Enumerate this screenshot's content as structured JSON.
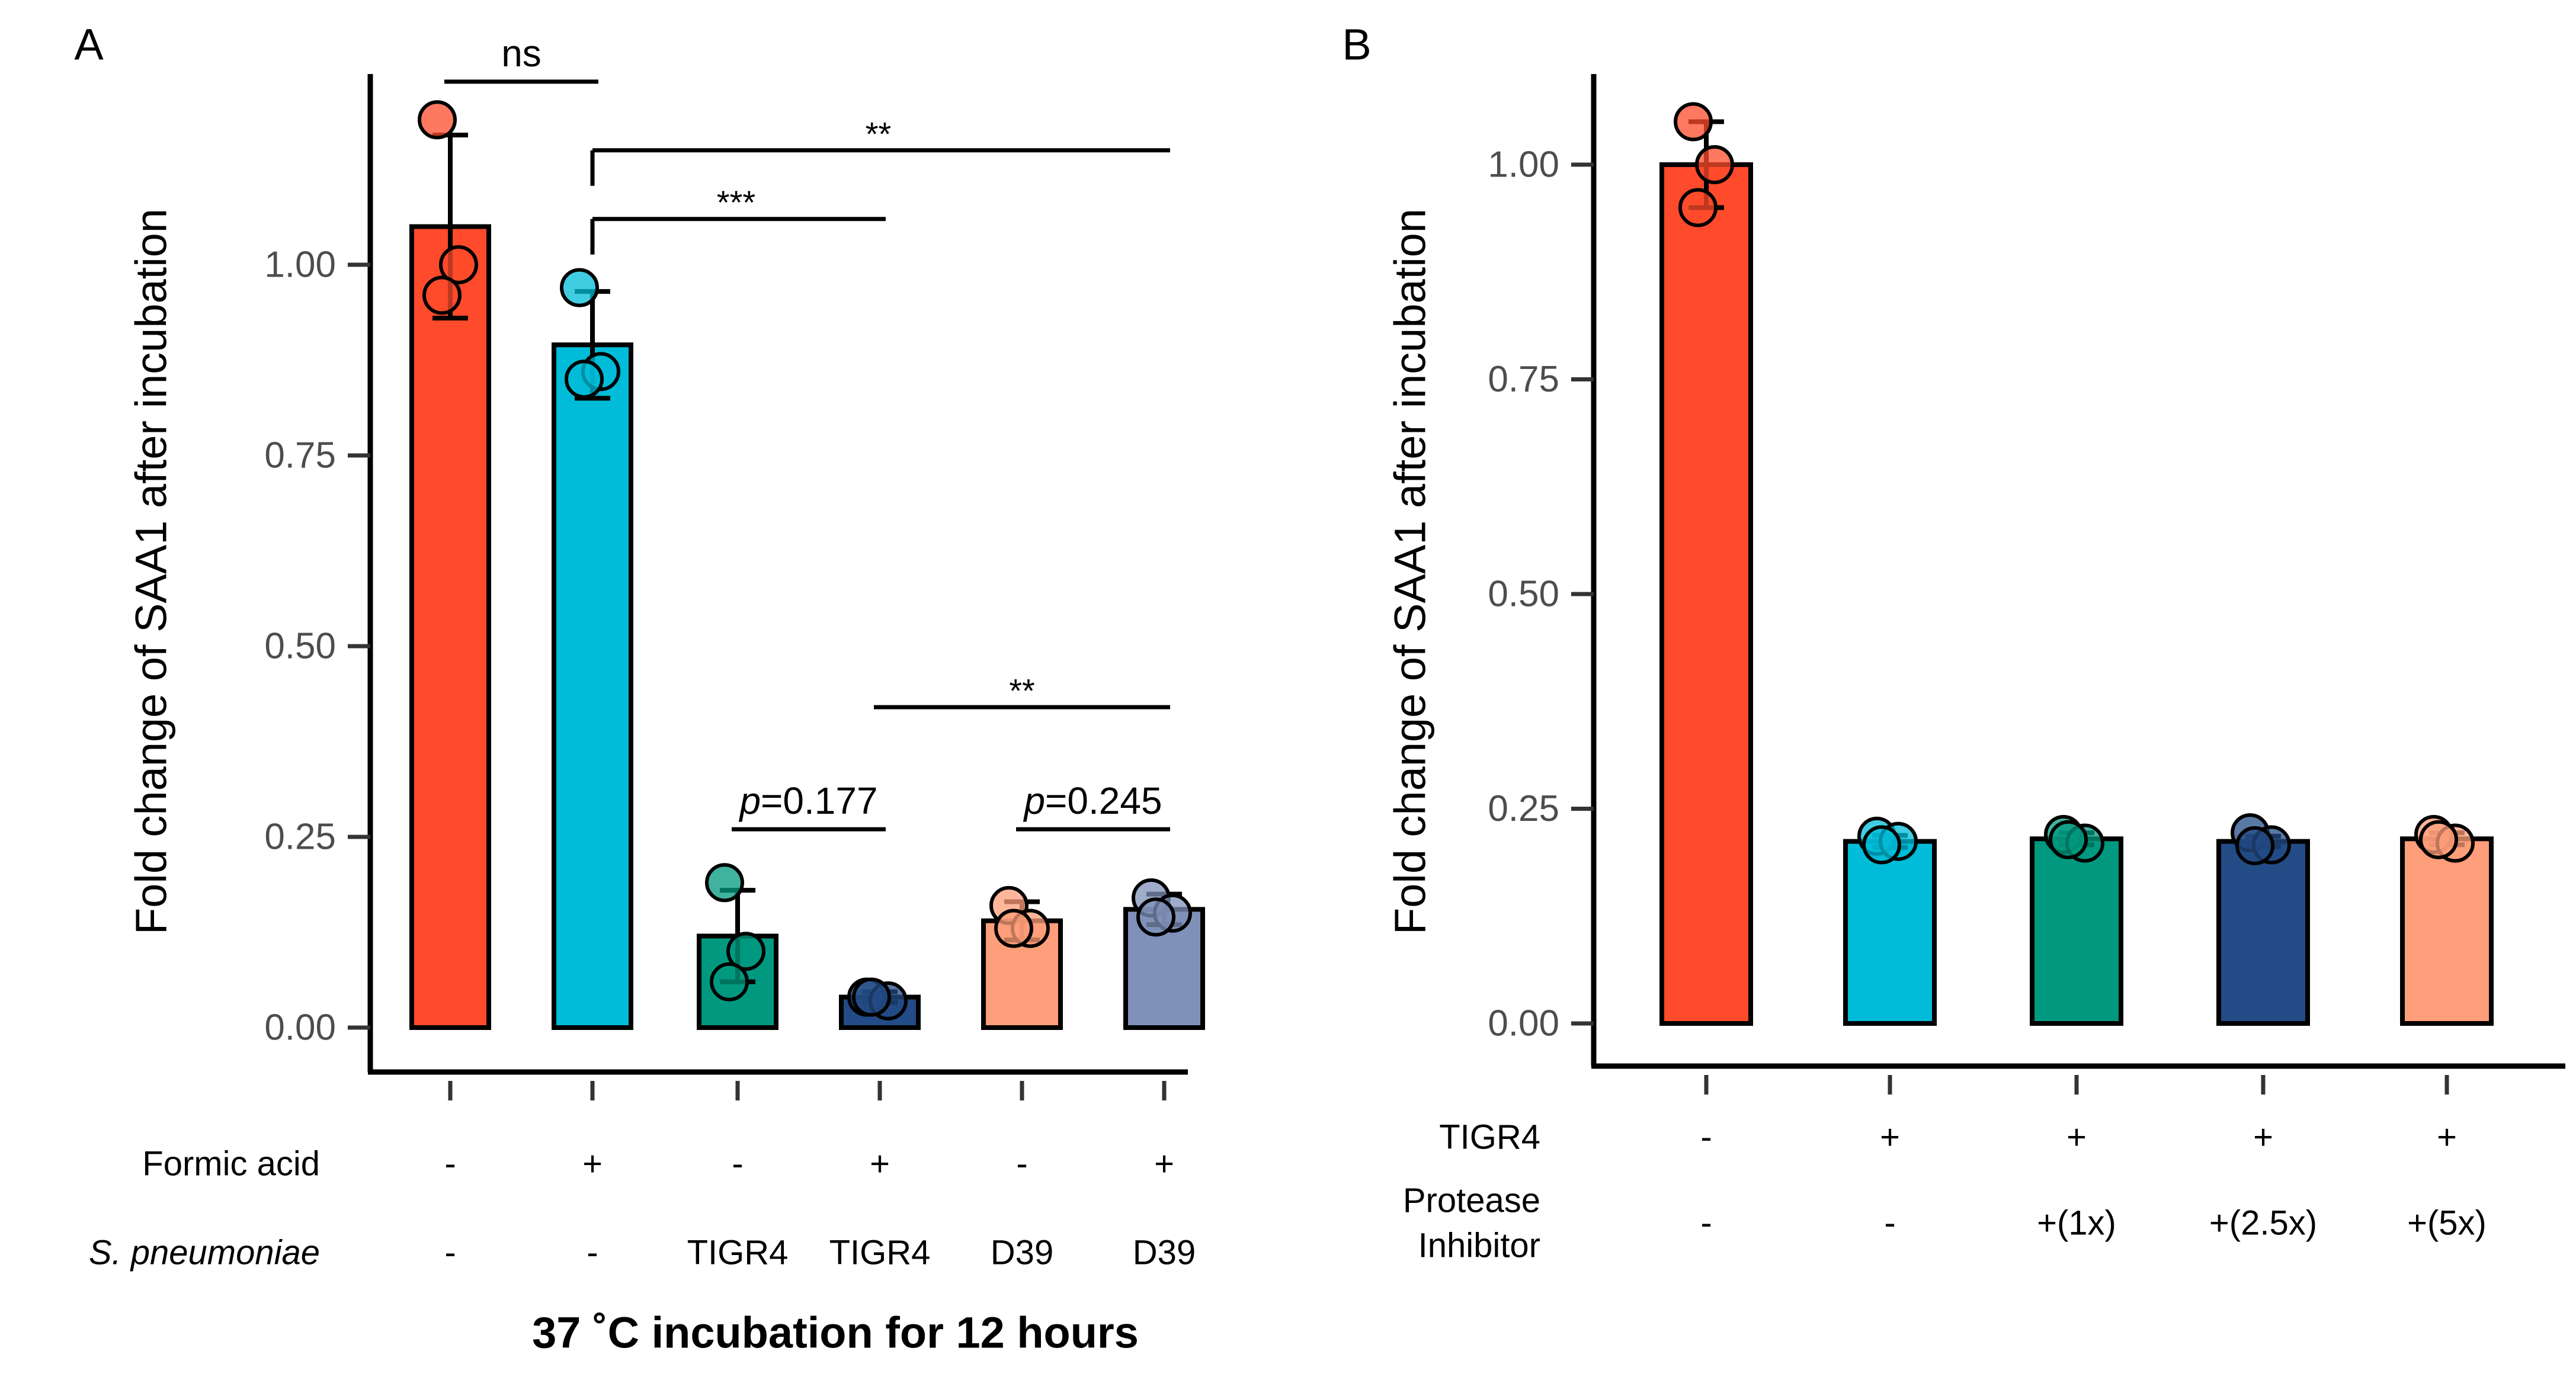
{
  "chart_data": [
    {
      "panel_label": "A",
      "type": "bar",
      "ylabel": "Fold change of SAA1 after incubation",
      "xlabel": "37 ˚C incubation for 12 hours",
      "ylim": [
        0,
        1.22
      ],
      "yticks": [
        "0.00",
        "0.25",
        "0.50",
        "0.75",
        "1.00"
      ],
      "ytick_values": [
        0,
        0.25,
        0.5,
        0.75,
        1.0
      ],
      "rows": [
        {
          "label": "Formic acid",
          "italic": false,
          "values": [
            "-",
            "+",
            "-",
            "+",
            "-",
            "+"
          ]
        },
        {
          "label": "S. pneumoniae",
          "italic": true,
          "values": [
            "-",
            "-",
            "TIGR4",
            "TIGR4",
            "D39",
            "D39"
          ]
        }
      ],
      "bars": [
        {
          "mean": 1.05,
          "sd": 0.12,
          "color": "#FF4B2B",
          "points": [
            1.19,
            1.0,
            0.96
          ]
        },
        {
          "mean": 0.895,
          "sd": 0.07,
          "color": "#00BCD8",
          "points": [
            0.97,
            0.86,
            0.85
          ]
        },
        {
          "mean": 0.12,
          "sd": 0.06,
          "color": "#00997F",
          "points": [
            0.19,
            0.1,
            0.06
          ]
        },
        {
          "mean": 0.04,
          "sd": 0.007,
          "color": "#234B85",
          "points": [
            0.04,
            0.035,
            0.04
          ]
        },
        {
          "mean": 0.14,
          "sd": 0.025,
          "color": "#FF9E7A",
          "points": [
            0.16,
            0.13,
            0.13
          ]
        },
        {
          "mean": 0.155,
          "sd": 0.02,
          "color": "#7F91B9",
          "points": [
            0.17,
            0.15,
            0.145
          ]
        }
      ],
      "annotations": [
        {
          "text": "ns",
          "italic_prefix": "",
          "from": 0,
          "to": 1,
          "y": 1.24,
          "stem": false
        },
        {
          "text": "**",
          "italic_prefix": "",
          "from": 1,
          "to": 5,
          "y": 1.15,
          "stem": true
        },
        {
          "text": "***",
          "italic_prefix": "",
          "from": 1,
          "to": 3,
          "y": 1.06,
          "stem": true
        },
        {
          "text": "**",
          "italic_prefix": "",
          "from": 3,
          "to": 5,
          "y": 0.42,
          "stem": false
        },
        {
          "text": "=0.177",
          "italic_prefix": "p",
          "from": 2,
          "to": 3,
          "y": 0.26,
          "stem": false
        },
        {
          "text": "=0.245",
          "italic_prefix": "p",
          "from": 4,
          "to": 5,
          "y": 0.26,
          "stem": false
        }
      ]
    },
    {
      "panel_label": "B",
      "type": "bar",
      "ylabel": "Fold change of SAA1 after incubation",
      "xlabel": "",
      "ylim": [
        0,
        1.1
      ],
      "yticks": [
        "0.00",
        "0.25",
        "0.50",
        "0.75",
        "1.00"
      ],
      "ytick_values": [
        0,
        0.25,
        0.5,
        0.75,
        1.0
      ],
      "rows": [
        {
          "label": "TIGR4",
          "italic": false,
          "values": [
            "-",
            "+",
            "+",
            "+",
            "+"
          ]
        },
        {
          "label": "Protease Inhibitor",
          "label_lines": [
            "Protease",
            "Inhibitor"
          ],
          "italic": false,
          "values": [
            "-",
            "-",
            "+(1x)",
            "+(2.5x)",
            "+(5x)"
          ]
        }
      ],
      "bars": [
        {
          "mean": 1.0,
          "sd": 0.05,
          "color": "#FF4B2B",
          "points": [
            1.05,
            1.0,
            0.95
          ]
        },
        {
          "mean": 0.212,
          "sd": 0.007,
          "color": "#00BCD8",
          "points": [
            0.218,
            0.212,
            0.208
          ]
        },
        {
          "mean": 0.215,
          "sd": 0.007,
          "color": "#00997F",
          "points": [
            0.22,
            0.21,
            0.214
          ]
        },
        {
          "mean": 0.212,
          "sd": 0.006,
          "color": "#234B85",
          "points": [
            0.222,
            0.208,
            0.207
          ]
        },
        {
          "mean": 0.215,
          "sd": 0.007,
          "color": "#FF9E7A",
          "points": [
            0.22,
            0.21,
            0.214
          ]
        }
      ],
      "annotations": []
    }
  ]
}
